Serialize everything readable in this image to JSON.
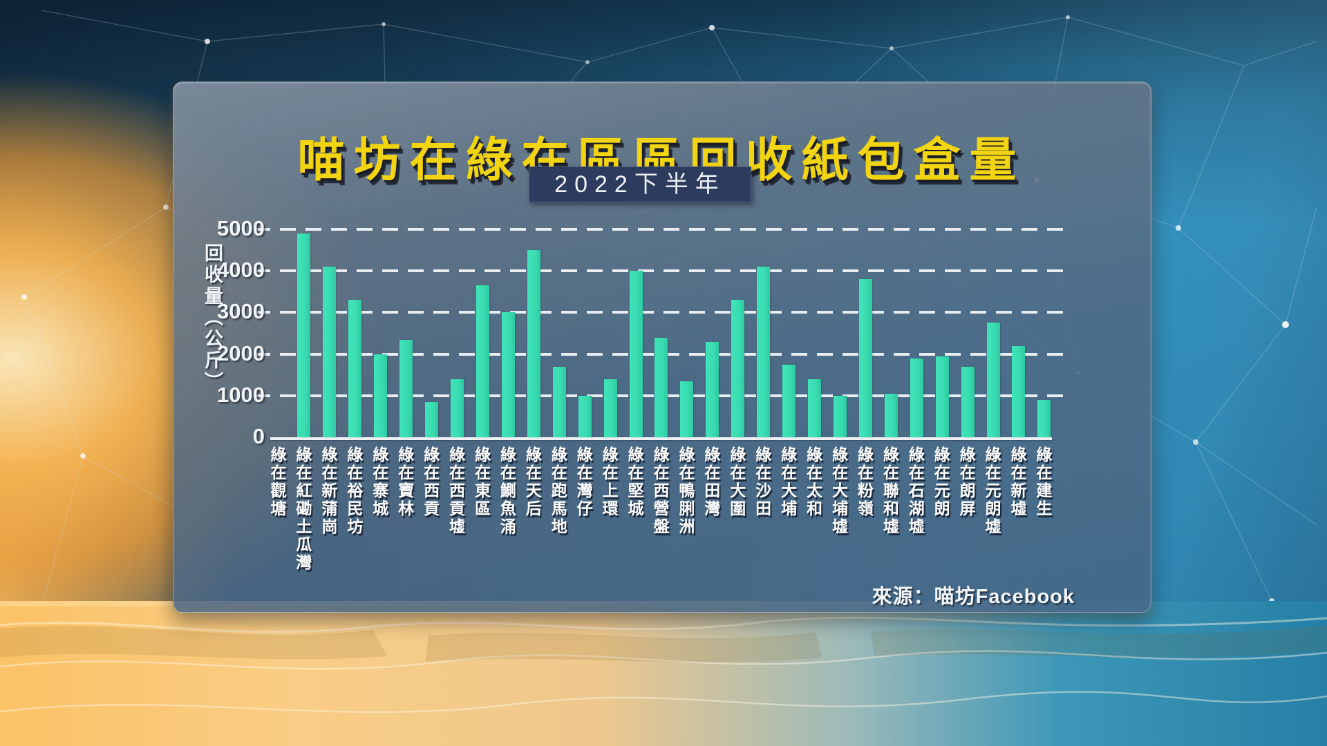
{
  "title": "喵坊在綠在區區回收紙包盒量",
  "subtitle": "2022下半年",
  "source": "來源：喵坊Facebook",
  "colors": {
    "title_yellow": "#f2d411",
    "bar_teal": "#3cdfb4",
    "subtitle_navy": "#2c3b5e",
    "axis_text": "#f2f5f8"
  },
  "chart_data": {
    "type": "bar",
    "title": "喵坊在綠在區區回收紙包盒量",
    "subtitle": "2022下半年",
    "xlabel": "",
    "ylabel": "回收量（公斤）",
    "ylim": [
      0,
      5000
    ],
    "yticks": [
      0,
      1000,
      2000,
      3000,
      4000,
      5000
    ],
    "grid": "horizontal dashed white, solid baseline at 0",
    "legend": "none",
    "bar_color": "#3cdfb4",
    "source": "來源：喵坊Facebook",
    "categories": [
      "綠在觀塘",
      "綠在紅磡土瓜灣",
      "綠在新蒲崗",
      "綠在裕民坊",
      "綠在寨城",
      "綠在寶林",
      "綠在西貢",
      "綠在西貢墟",
      "綠在東區",
      "綠在鰂魚涌",
      "綠在天后",
      "綠在跑馬地",
      "綠在灣仔",
      "綠在上環",
      "綠在堅城",
      "綠在西營盤",
      "綠在鴨脷洲",
      "綠在田灣",
      "綠在大圍",
      "綠在沙田",
      "綠在大埔",
      "綠在太和",
      "綠在大埔墟",
      "綠在粉嶺",
      "綠在聯和墟",
      "綠在石湖墟",
      "綠在元朗",
      "綠在朗屏",
      "綠在元朗墟",
      "綠在新墟",
      "綠在建生"
    ],
    "values": [
      0,
      4900,
      4100,
      3300,
      2000,
      2350,
      850,
      1400,
      3650,
      3000,
      4500,
      1700,
      1000,
      1400,
      4000,
      2400,
      1350,
      2300,
      3300,
      4100,
      1750,
      1400,
      1000,
      3800,
      1050,
      1900,
      1950,
      1700,
      2750,
      2200,
      900
    ],
    "note": "31 category labels; the first (綠在觀塘) shows no visible bar in the graphic"
  }
}
